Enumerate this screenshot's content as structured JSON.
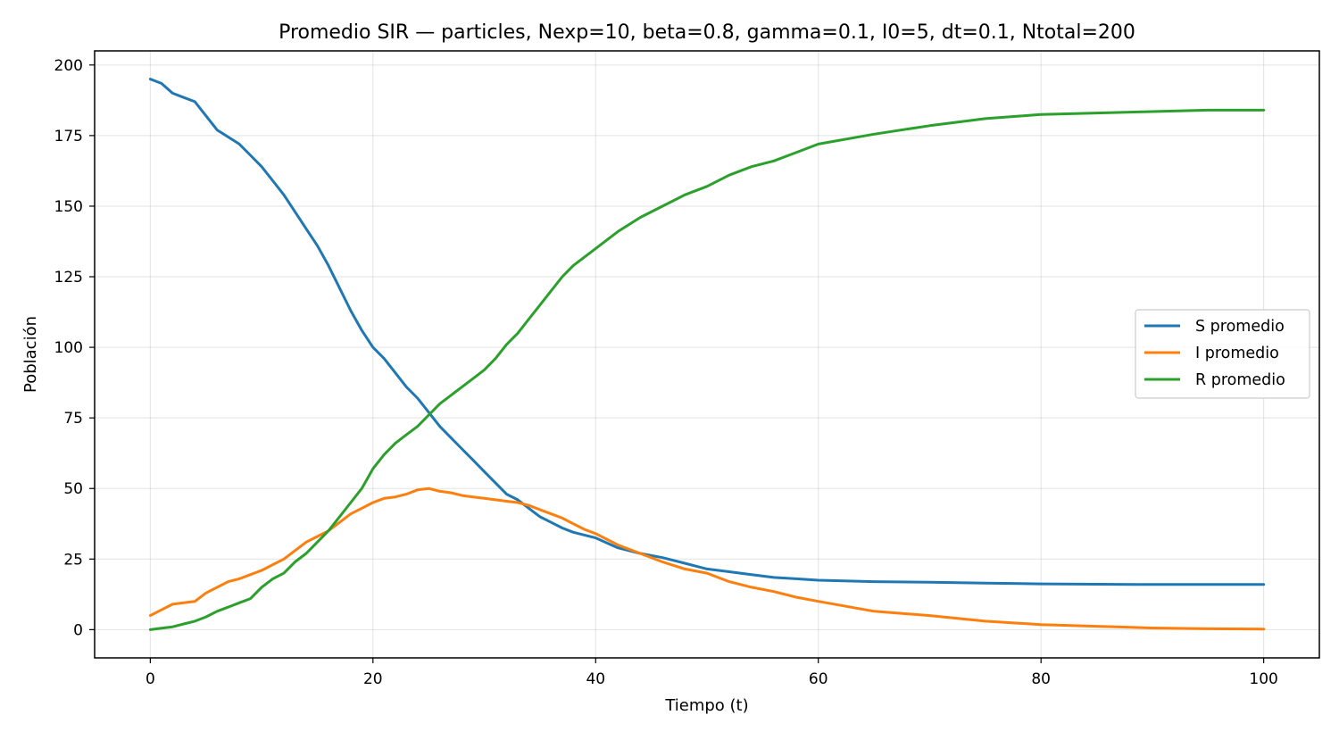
{
  "chart_data": {
    "type": "line",
    "title": "Promedio SIR — particles, Nexp=10, beta=0.8, gamma=0.1, I0=5, dt=0.1, Ntotal=200",
    "xlabel": "Tiempo (t)",
    "ylabel": "Población",
    "xlim": [
      -5,
      105
    ],
    "ylim": [
      -10,
      205
    ],
    "xticks": [
      0,
      20,
      40,
      60,
      80,
      100
    ],
    "yticks": [
      0,
      25,
      50,
      75,
      100,
      125,
      150,
      175,
      200
    ],
    "grid": true,
    "legend_position": "center-right",
    "series": [
      {
        "name": "S promedio",
        "color": "#1f77b4",
        "x": [
          0,
          1,
          2,
          3,
          4,
          5,
          6,
          7,
          8,
          9,
          10,
          11,
          12,
          13,
          14,
          15,
          16,
          17,
          18,
          19,
          20,
          21,
          22,
          23,
          24,
          25,
          26,
          27,
          28,
          29,
          30,
          31,
          32,
          33,
          34,
          35,
          36,
          37,
          38,
          39,
          40,
          42,
          44,
          46,
          48,
          50,
          52,
          54,
          56,
          58,
          60,
          65,
          70,
          75,
          80,
          85,
          90,
          95,
          100
        ],
        "values": [
          195,
          193.5,
          190,
          188.5,
          187,
          182,
          177,
          174.5,
          172,
          168,
          164,
          159,
          154,
          148,
          142,
          136,
          129,
          121,
          113,
          106,
          100,
          96,
          91,
          86,
          82,
          77,
          72,
          68,
          64,
          60,
          56,
          52,
          48,
          46,
          43,
          40,
          38,
          36,
          34.5,
          33.5,
          32.5,
          29,
          27,
          25.5,
          23.5,
          21.5,
          20.5,
          19.5,
          18.5,
          18,
          17.5,
          17,
          16.8,
          16.5,
          16.2,
          16.1,
          16,
          16,
          16
        ]
      },
      {
        "name": "I promedio",
        "color": "#ff7f0e",
        "x": [
          0,
          1,
          2,
          3,
          4,
          5,
          6,
          7,
          8,
          9,
          10,
          11,
          12,
          13,
          14,
          15,
          16,
          17,
          18,
          19,
          20,
          21,
          22,
          23,
          24,
          25,
          26,
          27,
          28,
          29,
          30,
          31,
          32,
          33,
          34,
          35,
          36,
          37,
          38,
          39,
          40,
          42,
          44,
          46,
          48,
          50,
          52,
          54,
          56,
          58,
          60,
          65,
          70,
          75,
          80,
          85,
          90,
          95,
          100
        ],
        "values": [
          5,
          7,
          9,
          9.5,
          10,
          13,
          15,
          17,
          18,
          19.5,
          21,
          23,
          25,
          28,
          31,
          33,
          35,
          38,
          41,
          43,
          45,
          46.5,
          47,
          48,
          49.5,
          50,
          49,
          48.5,
          47.5,
          47,
          46.5,
          46,
          45.5,
          45,
          44,
          42.5,
          41,
          39.5,
          37.5,
          35.5,
          34,
          30,
          27,
          24,
          21.5,
          20,
          17,
          15,
          13.5,
          11.5,
          10,
          6.5,
          5,
          3,
          1.8,
          1.2,
          0.6,
          0.3,
          0.2
        ]
      },
      {
        "name": "R promedio",
        "color": "#2ca02c",
        "x": [
          0,
          1,
          2,
          3,
          4,
          5,
          6,
          7,
          8,
          9,
          10,
          11,
          12,
          13,
          14,
          15,
          16,
          17,
          18,
          19,
          20,
          21,
          22,
          23,
          24,
          25,
          26,
          27,
          28,
          29,
          30,
          31,
          32,
          33,
          34,
          35,
          36,
          37,
          38,
          39,
          40,
          42,
          44,
          46,
          48,
          50,
          52,
          54,
          56,
          58,
          60,
          65,
          70,
          75,
          80,
          85,
          90,
          95,
          100
        ],
        "values": [
          0,
          0.5,
          1,
          2,
          3,
          4.5,
          6.5,
          8,
          9.5,
          11,
          15,
          18,
          20,
          24,
          27,
          31,
          35,
          40,
          45,
          50,
          57,
          62,
          66,
          69,
          72,
          76,
          80,
          83,
          86,
          89,
          92,
          96,
          101,
          105,
          110,
          115,
          120,
          125,
          129,
          132,
          135,
          141,
          146,
          150,
          154,
          157,
          161,
          164,
          166,
          169,
          172,
          175.5,
          178.5,
          181,
          182.5,
          183,
          183.5,
          184,
          184
        ]
      }
    ]
  }
}
